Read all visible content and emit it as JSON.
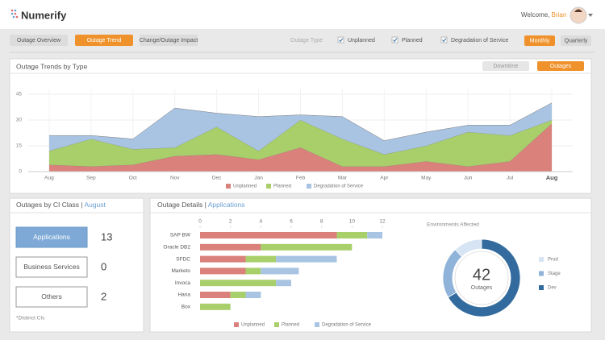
{
  "header": {
    "brand": "Numerify",
    "welcome": "Welcome,",
    "user": "Brian"
  },
  "tabs": [
    "Outage Overview",
    "Outage Trend",
    "Change/Outage Impact"
  ],
  "filters": {
    "label": "Outage Type",
    "options": [
      "Unplanned",
      "Planned",
      "Degradation of Service"
    ],
    "periods": [
      "Monthly",
      "Quarterly"
    ]
  },
  "trend_panel": {
    "title": "Outage Trends by Type",
    "toggles": [
      "Downtime",
      "Outages"
    ]
  },
  "ci_panel": {
    "title": "Outages by CI Class |",
    "highlight": "August",
    "items": [
      {
        "label": "Applications",
        "count": 13
      },
      {
        "label": "Business Services",
        "count": 0
      },
      {
        "label": "Others",
        "count": 2
      }
    ],
    "note": "*Distinct CIs"
  },
  "details_panel": {
    "title": "Outage Details |",
    "highlight": "Applications"
  },
  "chart_data": [
    {
      "type": "area",
      "categories": [
        "Aug",
        "Sep",
        "Oct",
        "Nov",
        "Dec",
        "Jan",
        "Feb",
        "Mar",
        "Apr",
        "May",
        "Jun",
        "Jul",
        "Aug"
      ],
      "series": [
        {
          "name": "Unplanned",
          "color": "#d9817a",
          "values": [
            4,
            3,
            4,
            9,
            10,
            7,
            14,
            3,
            3,
            6,
            3,
            6,
            28
          ]
        },
        {
          "name": "Planned",
          "color": "#a9cf6a",
          "values": [
            8,
            16,
            9,
            5,
            16,
            5,
            16,
            16,
            7,
            9,
            20,
            15,
            2
          ]
        },
        {
          "name": "Degradation of Service",
          "color": "#a8c4e2",
          "values": [
            9,
            2,
            6,
            23,
            8,
            20,
            3,
            13,
            8,
            8,
            4,
            6,
            10
          ]
        }
      ],
      "ylim": [
        0,
        45
      ],
      "yticks": [
        0,
        15,
        30,
        45
      ],
      "grid": true,
      "stacked": true
    },
    {
      "type": "bar",
      "orientation": "horizontal",
      "stacked": true,
      "categories": [
        "SAP BW",
        "Oracle DB2",
        "SFDC",
        "Marketo",
        "Invoca",
        "Hana",
        "Box"
      ],
      "series": [
        {
          "name": "Unplanned",
          "color": "#d9817a",
          "values": [
            9,
            4,
            3,
            3,
            0,
            2,
            0
          ]
        },
        {
          "name": "Planned",
          "color": "#a9cf6a",
          "values": [
            2,
            6,
            2,
            1,
            5,
            1,
            2
          ]
        },
        {
          "name": "Degradation of Service",
          "color": "#a8c4e2",
          "values": [
            1,
            0,
            4,
            2.5,
            1,
            1,
            0
          ]
        }
      ],
      "xlim": [
        0,
        12
      ],
      "xticks": [
        0,
        2,
        4,
        6,
        8,
        10,
        12
      ]
    },
    {
      "type": "donut",
      "title": "Environments Affected",
      "center_value": 42,
      "center_label": "Outages",
      "categories": [
        "Prod",
        "Stage",
        "Dev"
      ],
      "values": [
        5,
        9,
        28
      ],
      "colors": [
        "#d6e4f3",
        "#8fb3d9",
        "#336b9e"
      ]
    }
  ]
}
